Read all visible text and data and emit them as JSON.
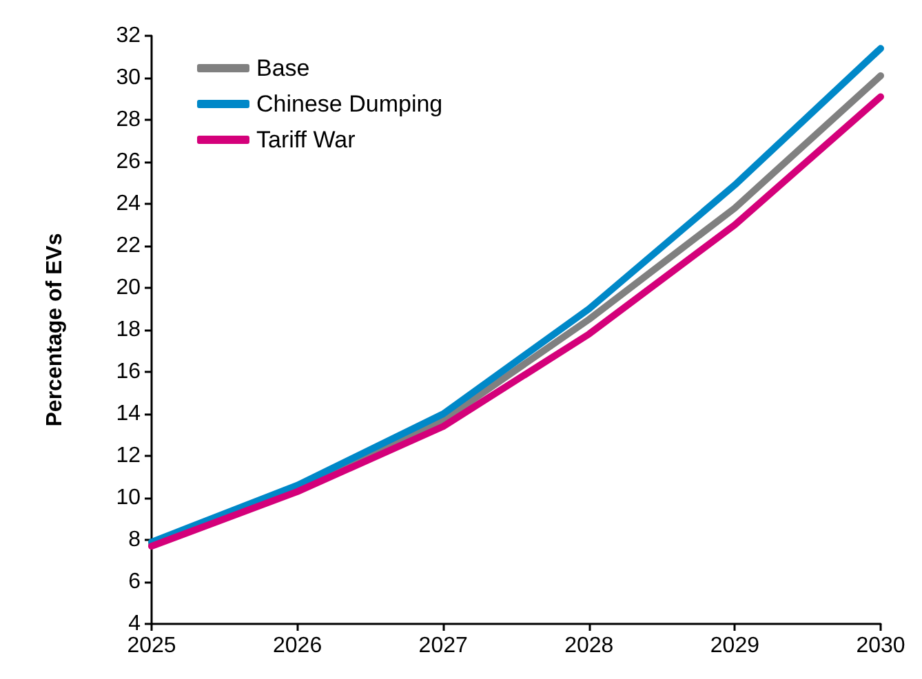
{
  "chart_data": {
    "type": "line",
    "ylabel": "Percentage of EVs",
    "x": [
      2025,
      2026,
      2027,
      2028,
      2029,
      2030
    ],
    "series": [
      {
        "name": "Base",
        "color": "#808080",
        "values": [
          7.8,
          10.4,
          13.7,
          18.5,
          23.8,
          30.1
        ]
      },
      {
        "name": "Chinese Dumping",
        "color": "#0088c8",
        "values": [
          7.9,
          10.6,
          14.0,
          19.0,
          24.9,
          31.4
        ]
      },
      {
        "name": "Tariff War",
        "color": "#d4007a",
        "values": [
          7.7,
          10.3,
          13.4,
          17.8,
          23.0,
          29.1
        ]
      }
    ],
    "xlim": [
      2025,
      2030
    ],
    "xticks": [
      2025,
      2026,
      2027,
      2028,
      2029,
      2030
    ],
    "ylim": [
      4,
      32
    ],
    "yticks": [
      4,
      6,
      8,
      10,
      12,
      14,
      16,
      18,
      20,
      22,
      24,
      26,
      28,
      30,
      32
    ],
    "grid": false,
    "legend": "top left",
    "marker": "none",
    "line_style": "solid"
  }
}
